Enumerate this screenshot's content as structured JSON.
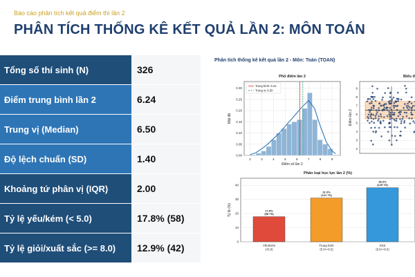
{
  "header": {
    "kicker": "Báo cáo phân tích kết quả điểm thi lần 2",
    "title": "PHÂN TÍCH THỐNG KÊ KẾT QUẢ LẦN 2: MÔN TOÁN"
  },
  "stats": [
    {
      "label": "Tổng số thí sinh (N)",
      "value": "326",
      "color": "#1f4e79"
    },
    {
      "label": "Điểm trung bình lần 2",
      "value": "6.24",
      "color": "#2e75b6"
    },
    {
      "label": "Trung vị (Median)",
      "value": "6.50",
      "color": "#2e75b6"
    },
    {
      "label": "Độ lệch chuẩn (SD)",
      "value": "1.40",
      "color": "#2e75b6"
    },
    {
      "label": "Khoảng tứ phân vị (IQR)",
      "value": "2.00",
      "color": "#1f4e79"
    },
    {
      "label": "Tỷ lệ yếu/kém (< 5.0)",
      "value": "17.8% (58)",
      "color": "#1f4e79"
    },
    {
      "label": "Tỷ lệ giỏi/xuất sắc (>= 8.0)",
      "value": "12.9% (42)",
      "color": "#1f4e79"
    }
  ],
  "figure": {
    "suptitle": "Phân tích thống kê kết quả lần 2 - Môn: Toán (TOAN)"
  },
  "chart_data": [
    {
      "type": "bar",
      "subtype": "histogram",
      "title": "Phổ điểm lần 2",
      "xlabel": "Điểm số lần 2",
      "ylabel": "Mật độ",
      "xlim": [
        1.5,
        9.7
      ],
      "ylim": [
        0,
        0.33
      ],
      "xticks": [
        "2",
        "3",
        "4",
        "5",
        "6",
        "7",
        "8",
        "9"
      ],
      "yticks": [
        "0.00",
        "0.05",
        "0.10",
        "0.15",
        "0.20",
        "0.25",
        "0.30"
      ],
      "bin_edges": [
        2.5,
        2.94,
        3.38,
        3.81,
        4.25,
        4.69,
        5.13,
        5.56,
        6.0,
        6.44,
        6.88,
        7.31,
        7.75,
        8.19,
        8.63,
        9.06
      ],
      "density": [
        0.01,
        0.02,
        0.04,
        0.07,
        0.1,
        0.12,
        0.14,
        0.15,
        0.16,
        0.21,
        0.28,
        0.16,
        0.07,
        0.05,
        0.03
      ],
      "kde_x": [
        2.0,
        2.5,
        3.0,
        3.5,
        4.0,
        4.5,
        5.0,
        5.5,
        6.0,
        6.5,
        7.0,
        7.5,
        8.0,
        8.5,
        9.0,
        9.3
      ],
      "kde_y": [
        0.003,
        0.012,
        0.03,
        0.05,
        0.075,
        0.1,
        0.13,
        0.16,
        0.19,
        0.22,
        0.245,
        0.21,
        0.13,
        0.06,
        0.02,
        0.008
      ],
      "mean": 6.24,
      "median": 6.5,
      "legend": [
        "Trung bình: 6.24",
        "Trung vị: 6.50"
      ],
      "legend_position": "top-left",
      "grid": true,
      "colors": {
        "bars": "#8fb4d6",
        "kde": "#2e75b6",
        "mean": "#e04a3a",
        "median": "#2ca58d"
      }
    },
    {
      "type": "scatter",
      "subtype": "box-strip",
      "title": "Biểu đồ",
      "ylabel": "Điểm lần 2",
      "ylim": [
        1.5,
        9.8
      ],
      "yticks": [
        "2",
        "3",
        "4",
        "5",
        "6",
        "7",
        "8",
        "9"
      ],
      "q1": 5.5,
      "median": 6.5,
      "q3": 7.5,
      "whisker_low": 2.5,
      "whisker_high": 9.25,
      "colors": {
        "box": "#f39c4d",
        "points": "#1f3f6e"
      }
    },
    {
      "type": "bar",
      "title": "Phân loại học lực lần 2 (%)",
      "ylabel": "Tỷ lệ (%)",
      "ylim": [
        0,
        45
      ],
      "yticks": [
        "0",
        "10",
        "20",
        "30",
        "40"
      ],
      "categories": [
        {
          "name": "Yếu/Kém",
          "sub": "(<5.0)"
        },
        {
          "name": "Trung bình",
          "sub": "(5.0<=6.5)"
        },
        {
          "name": "Khá",
          "sub": "(6.5<=8.0)"
        }
      ],
      "values": [
        17.8,
        31.0,
        38.3
      ],
      "labels": [
        {
          "pct": "17.8%",
          "count": "(58 TS)"
        },
        {
          "pct": "31.0%",
          "count": "(101 TS)"
        },
        {
          "pct": "38.3%",
          "count": "(125 TS)"
        }
      ],
      "colors": [
        "#e04a3a",
        "#f39c2a",
        "#3498db"
      ]
    }
  ]
}
